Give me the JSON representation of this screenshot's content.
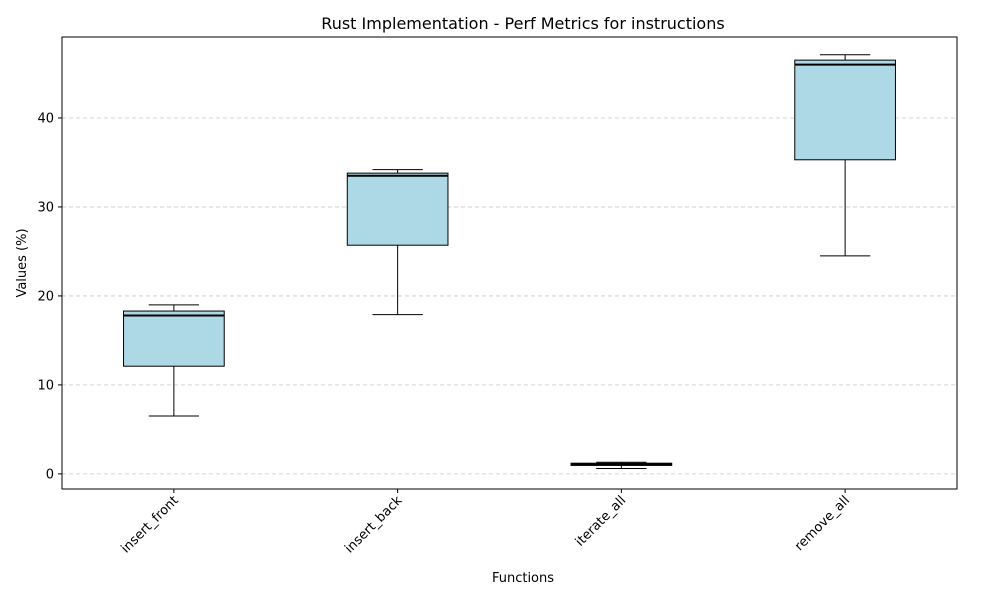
{
  "chart_data": {
    "type": "box",
    "title": "Rust Implementation - Perf Metrics for instructions",
    "xlabel": "Functions",
    "ylabel": "Values (%)",
    "categories": [
      "insert_front",
      "insert_back",
      "iterate_all",
      "remove_all"
    ],
    "boxes": [
      {
        "whisker_low": 6.5,
        "q1": 12.1,
        "median": 17.8,
        "q3": 18.3,
        "whisker_high": 19.0
      },
      {
        "whisker_low": 17.9,
        "q1": 25.7,
        "median": 33.5,
        "q3": 33.8,
        "whisker_high": 34.2
      },
      {
        "whisker_low": 0.6,
        "q1": 0.95,
        "median": 1.1,
        "q3": 1.2,
        "whisker_high": 1.3
      },
      {
        "whisker_low": 24.5,
        "q1": 35.3,
        "median": 46.0,
        "q3": 46.5,
        "whisker_high": 47.1
      }
    ],
    "ylim": [
      -1.7,
      49.1
    ],
    "yticks": [
      0,
      10,
      20,
      30,
      40
    ],
    "grid": "y-dashed",
    "colors": {
      "box_fill": "#add8e6",
      "box_edge": "#000000",
      "median": "#000000",
      "grid": "#c8c8c8"
    }
  }
}
